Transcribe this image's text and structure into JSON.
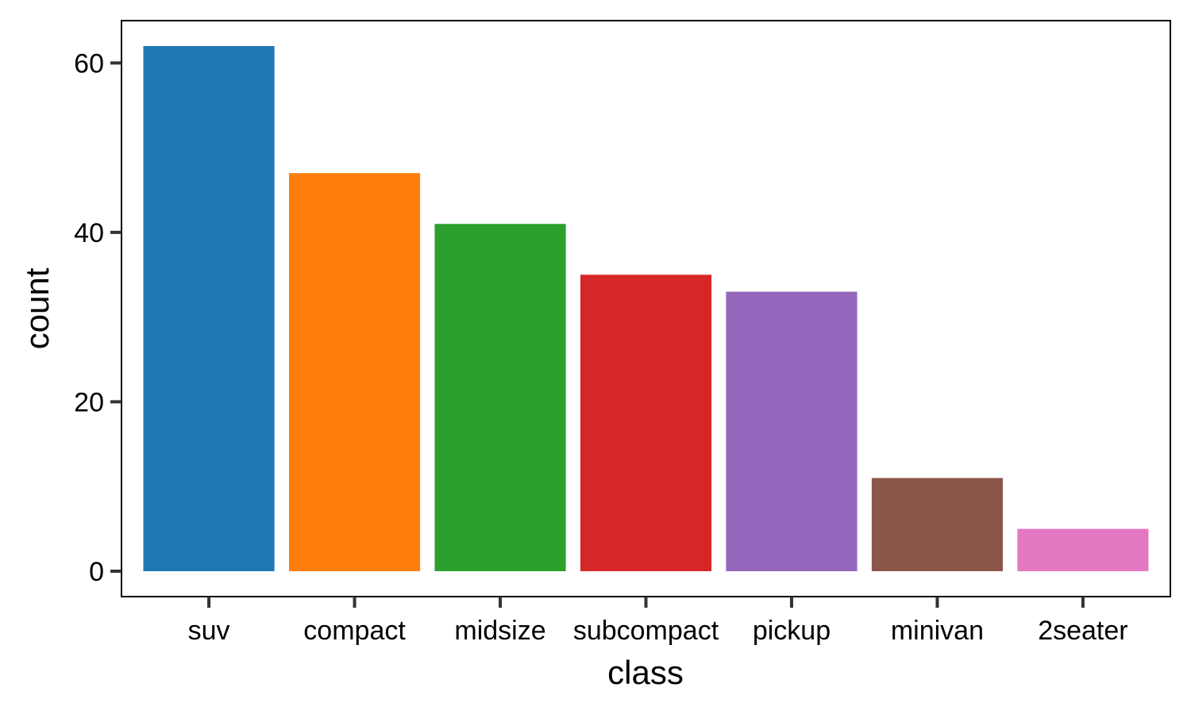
{
  "chart_data": {
    "type": "bar",
    "title": "",
    "xlabel": "class",
    "ylabel": "count",
    "categories": [
      "suv",
      "compact",
      "midsize",
      "subcompact",
      "pickup",
      "minivan",
      "2seater"
    ],
    "values": [
      62,
      47,
      41,
      35,
      33,
      11,
      5
    ],
    "colors": [
      "#1f77b4",
      "#ff7f0e",
      "#2ca02c",
      "#d62728",
      "#9467bd",
      "#8c564b",
      "#e377c2"
    ],
    "yticks": [
      0,
      20,
      40,
      60
    ],
    "ylim": [
      -3,
      65
    ],
    "grid": false,
    "legend": "none"
  }
}
